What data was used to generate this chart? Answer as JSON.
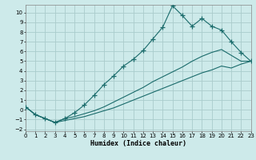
{
  "xlabel": "Humidex (Indice chaleur)",
  "bg_color": "#cdeaea",
  "grid_color": "#aacccc",
  "line_color": "#1a6b6b",
  "xlim": [
    0,
    23
  ],
  "ylim": [
    -2.2,
    10.8
  ],
  "xticks": [
    0,
    1,
    2,
    3,
    4,
    5,
    6,
    7,
    8,
    9,
    10,
    11,
    12,
    13,
    14,
    15,
    16,
    17,
    18,
    19,
    20,
    21,
    22,
    23
  ],
  "yticks": [
    -2,
    -1,
    0,
    1,
    2,
    3,
    4,
    5,
    6,
    7,
    8,
    9,
    10
  ],
  "s1_x": [
    0,
    1,
    2,
    3,
    4,
    5,
    6,
    7,
    8,
    9,
    10,
    11,
    12,
    13,
    14,
    15,
    16,
    17,
    18,
    19,
    20,
    21,
    22,
    23
  ],
  "s1_y": [
    0.3,
    -0.5,
    -0.9,
    -1.3,
    -0.9,
    -0.3,
    0.5,
    1.5,
    2.6,
    3.5,
    4.5,
    5.2,
    6.1,
    7.3,
    8.5,
    10.7,
    9.7,
    8.6,
    9.4,
    8.6,
    8.2,
    7.0,
    5.9,
    5.0
  ],
  "s2_x": [
    0,
    1,
    2,
    3,
    4,
    5,
    6,
    7,
    8,
    9,
    10,
    11,
    12,
    13,
    14,
    15,
    16,
    17,
    18,
    19,
    20,
    21,
    22,
    23
  ],
  "s2_y": [
    0.3,
    -0.5,
    -0.9,
    -1.3,
    -0.9,
    -0.7,
    -0.4,
    -0.1,
    0.3,
    0.8,
    1.3,
    1.8,
    2.3,
    2.9,
    3.4,
    3.9,
    4.4,
    5.0,
    5.5,
    5.9,
    6.2,
    5.6,
    5.0,
    5.0
  ],
  "s3_x": [
    0,
    1,
    2,
    3,
    4,
    5,
    6,
    7,
    8,
    9,
    10,
    11,
    12,
    13,
    14,
    15,
    16,
    17,
    18,
    19,
    20,
    21,
    22,
    23
  ],
  "s3_y": [
    0.3,
    -0.5,
    -0.9,
    -1.3,
    -1.1,
    -0.9,
    -0.7,
    -0.4,
    -0.1,
    0.2,
    0.6,
    1.0,
    1.4,
    1.8,
    2.2,
    2.6,
    3.0,
    3.4,
    3.8,
    4.1,
    4.5,
    4.3,
    4.7,
    5.0
  ]
}
